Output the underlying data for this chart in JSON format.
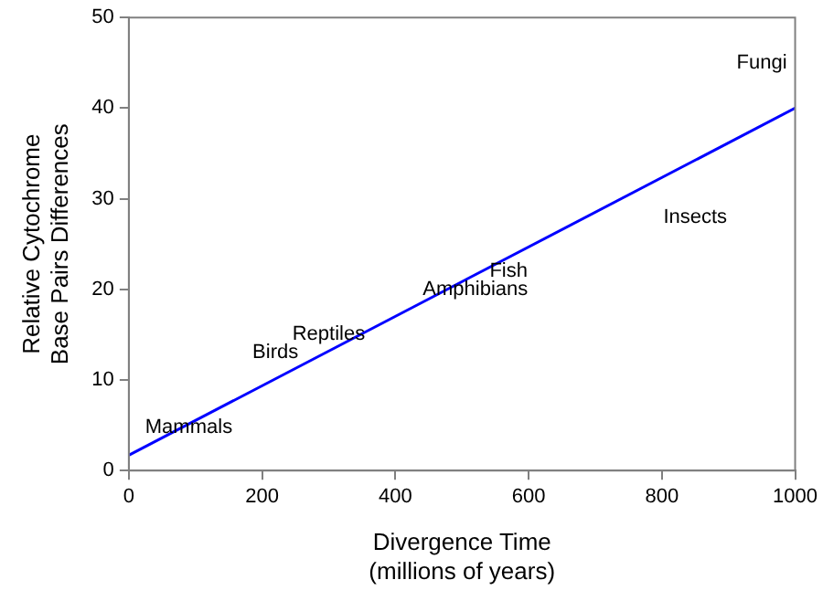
{
  "chart_data": {
    "type": "line",
    "xlabel": "Divergence Time\n(millions of years)",
    "ylabel": "Relative Cytochrome\nBase Pairs Differences",
    "series": [
      {
        "x": [
          0,
          1000
        ],
        "values": [
          1.7,
          40
        ],
        "color": "#0000ff"
      }
    ],
    "xlim": [
      0,
      1000
    ],
    "xticks": [
      0,
      200,
      400,
      600,
      800,
      1000
    ],
    "ylim": [
      0,
      50
    ],
    "yticks": [
      0,
      10,
      20,
      30,
      40,
      50
    ],
    "grid": false,
    "legend": false,
    "marker": "none",
    "line_style": "solid",
    "annotations": [
      "Mammals",
      "Birds",
      "Reptiles",
      "Amphibians",
      "Fish",
      "Insects",
      "Fungi"
    ]
  }
}
